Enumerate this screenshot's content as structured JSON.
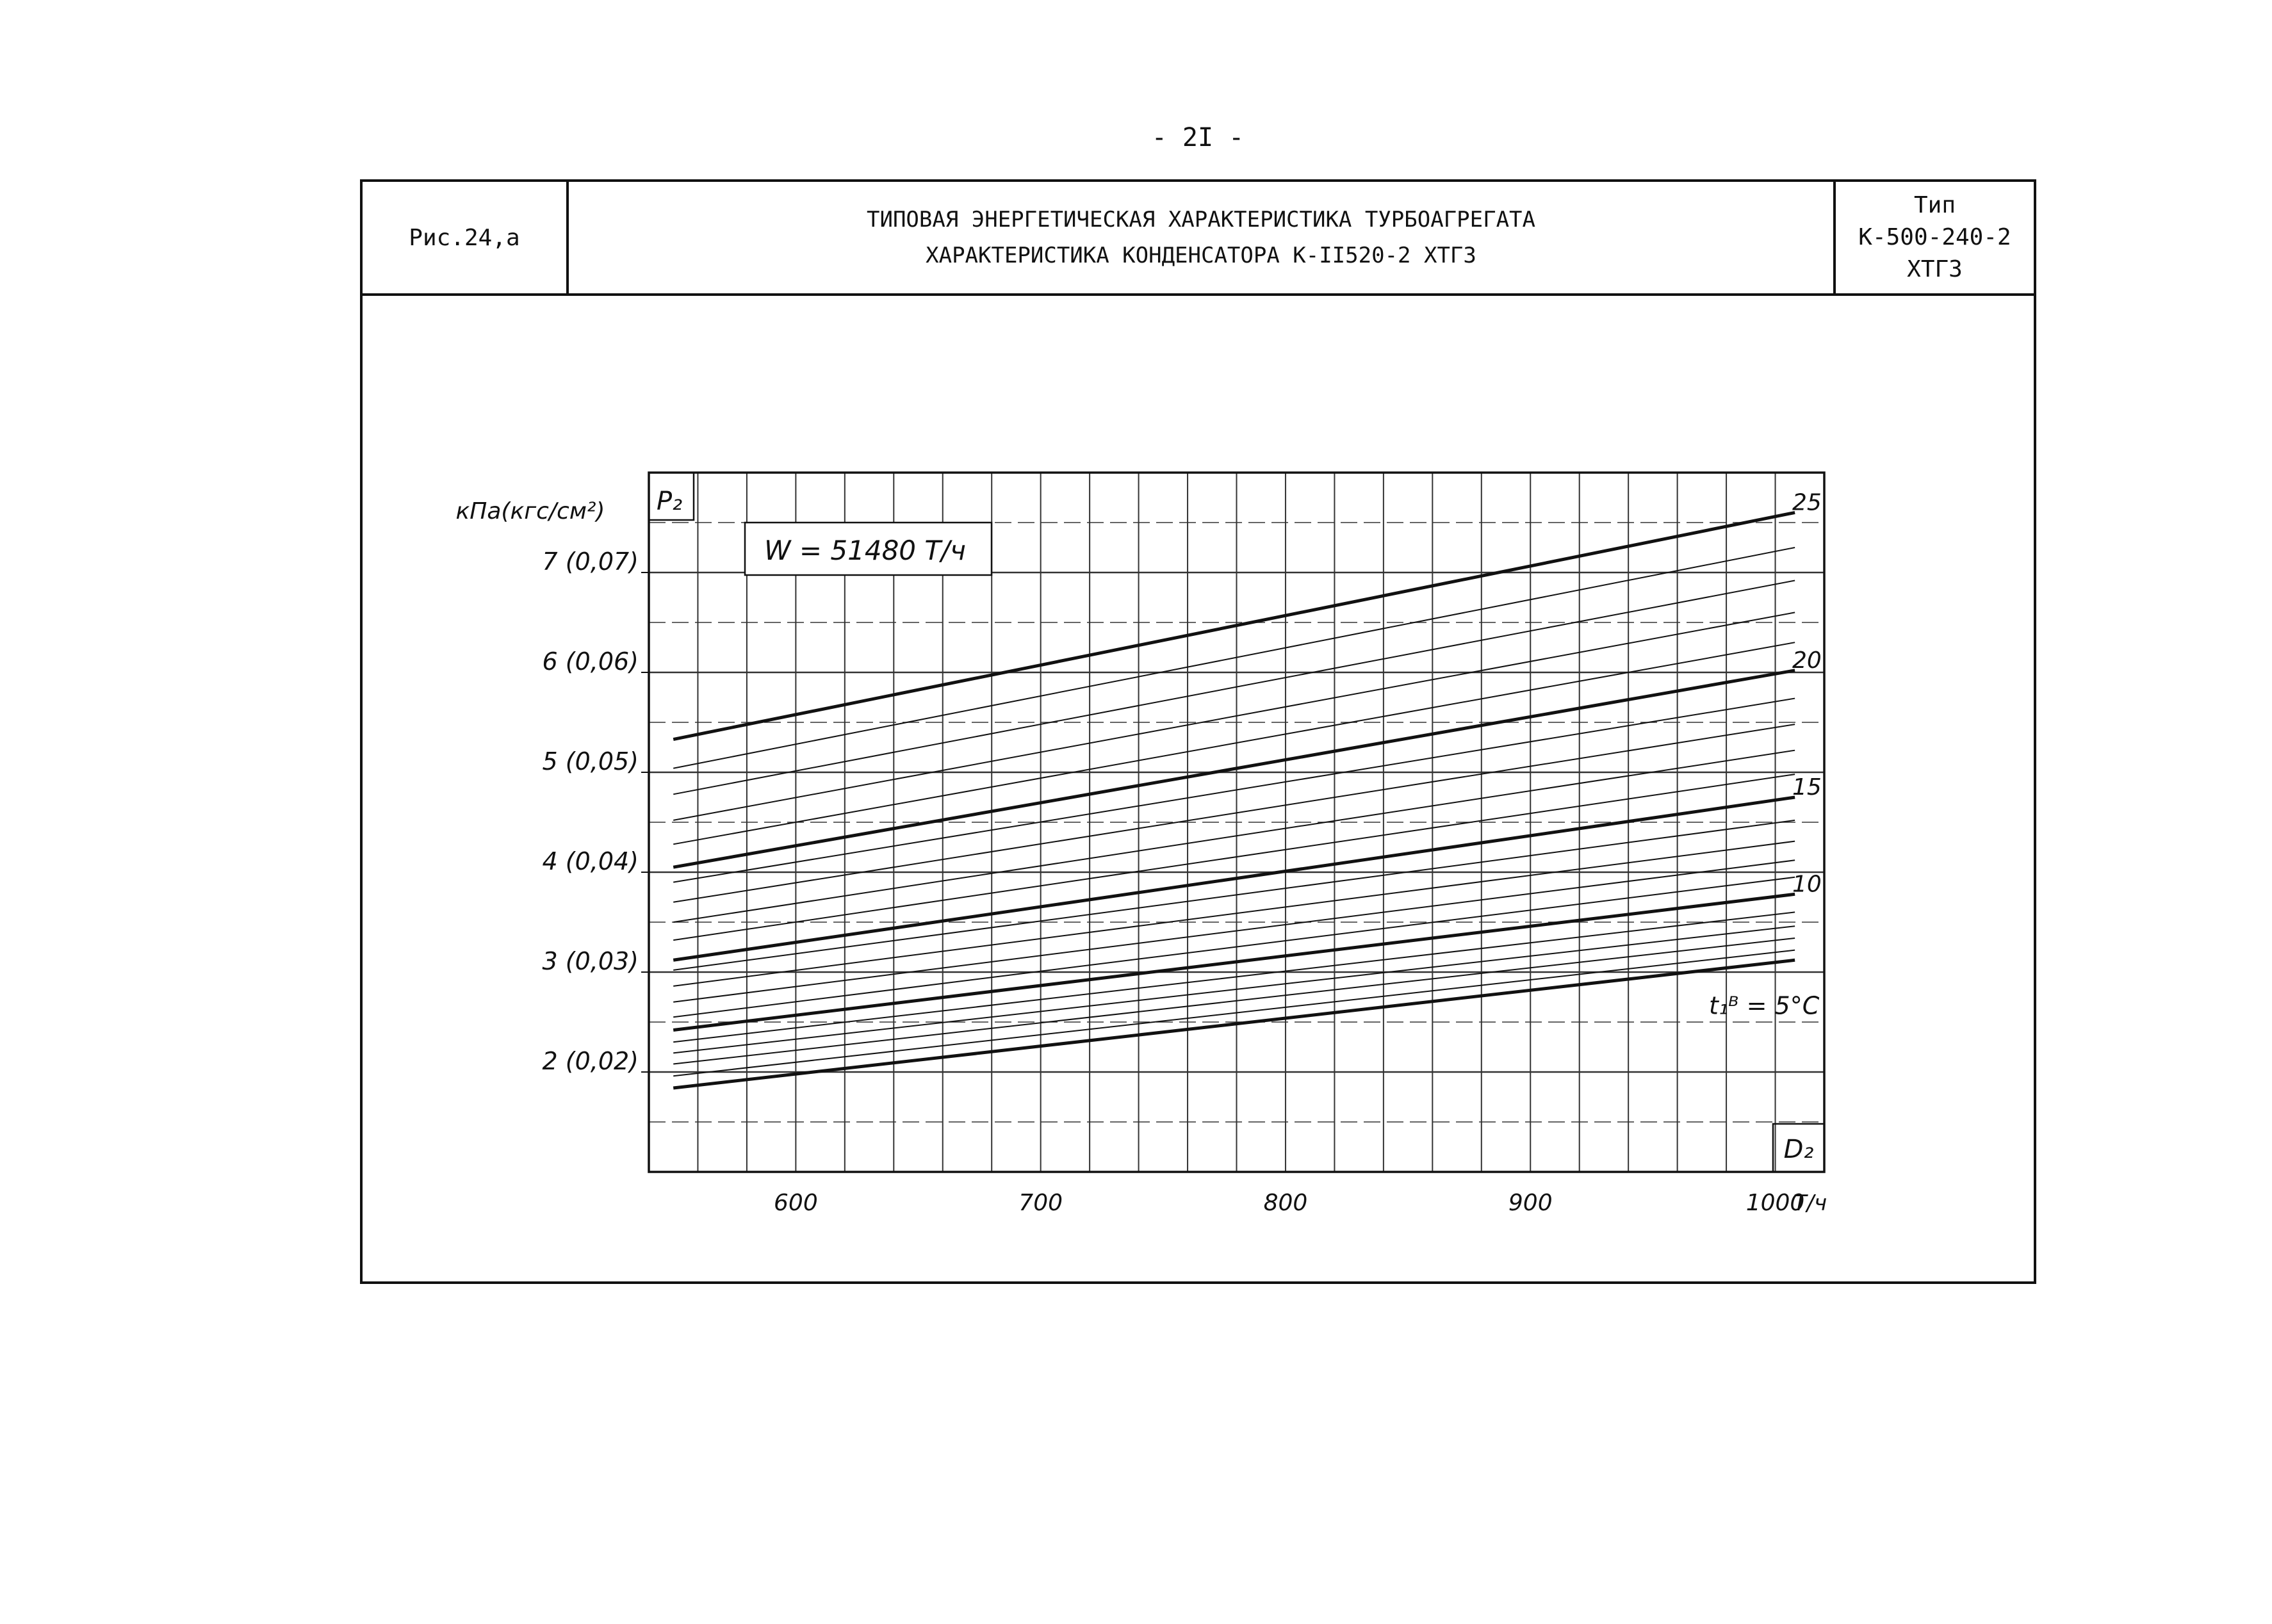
{
  "page": {
    "number": "- 2I -"
  },
  "header": {
    "figure_label": "Рис.24,а",
    "title_line1": "ТИПОВАЯ ЭНЕРГЕТИЧЕСКАЯ ХАРАКТЕРИСТИКА ТУРБОАГРЕГАТА",
    "title_line2": "ХАРАКТЕРИСТИКА КОНДЕНСАТОРА К-II520-2 ХТГЗ",
    "type_label": "Тип",
    "type_value": "К-500-240-2",
    "manufacturer": "ХТГЗ"
  },
  "chart_data": {
    "type": "line",
    "title": "",
    "ylabel": "кПа(кгс/см²)",
    "y_symbol": "P₂",
    "xlabel": "Т/ч",
    "x_symbol": "D₂",
    "annotation": "W = 51480 Т/ч",
    "temperature_label": "t₁ᴮ = 5°C",
    "xlim": [
      540,
      1020
    ],
    "ylim": [
      1,
      8
    ],
    "x_ticks": [
      {
        "value": 600,
        "label": "600"
      },
      {
        "value": 700,
        "label": "700"
      },
      {
        "value": 800,
        "label": "800"
      },
      {
        "value": 900,
        "label": "900"
      },
      {
        "value": 1000,
        "label": "1000"
      }
    ],
    "y_ticks": [
      {
        "value": 2,
        "label": "2 (0,02)"
      },
      {
        "value": 3,
        "label": "3 (0,03)"
      },
      {
        "value": 4,
        "label": "4 (0,04)"
      },
      {
        "value": 5,
        "label": "5 (0,05)"
      },
      {
        "value": 6,
        "label": "6 (0,06)"
      },
      {
        "value": 7,
        "label": "7 (0,07)"
      }
    ],
    "grid": true,
    "curve_labels": [
      {
        "t": 25,
        "label": "25"
      },
      {
        "t": 20,
        "label": "20"
      },
      {
        "t": 15,
        "label": "15"
      },
      {
        "t": 10,
        "label": "10"
      }
    ],
    "series": [
      {
        "t": 5,
        "bold": true,
        "x": [
          550,
          1008
        ],
        "y": [
          1.84,
          3.12
        ]
      },
      {
        "t": 6,
        "bold": false,
        "x": [
          550,
          1008
        ],
        "y": [
          1.96,
          3.22
        ]
      },
      {
        "t": 7,
        "bold": false,
        "x": [
          550,
          1008
        ],
        "y": [
          2.08,
          3.34
        ]
      },
      {
        "t": 8,
        "bold": false,
        "x": [
          550,
          1008
        ],
        "y": [
          2.19,
          3.46
        ]
      },
      {
        "t": 9,
        "bold": false,
        "x": [
          550,
          1008
        ],
        "y": [
          2.3,
          3.6
        ]
      },
      {
        "t": 10,
        "bold": true,
        "x": [
          550,
          1008
        ],
        "y": [
          2.42,
          3.78
        ]
      },
      {
        "t": 11,
        "bold": false,
        "x": [
          550,
          1008
        ],
        "y": [
          2.55,
          3.95
        ]
      },
      {
        "t": 12,
        "bold": false,
        "x": [
          550,
          1008
        ],
        "y": [
          2.7,
          4.12
        ]
      },
      {
        "t": 13,
        "bold": false,
        "x": [
          550,
          1008
        ],
        "y": [
          2.86,
          4.31
        ]
      },
      {
        "t": 14,
        "bold": false,
        "x": [
          550,
          1008
        ],
        "y": [
          3.02,
          4.52
        ]
      },
      {
        "t": 15,
        "bold": true,
        "x": [
          550,
          1008
        ],
        "y": [
          3.12,
          4.75
        ]
      },
      {
        "t": 16,
        "bold": false,
        "x": [
          550,
          1008
        ],
        "y": [
          3.32,
          4.98
        ]
      },
      {
        "t": 17,
        "bold": false,
        "x": [
          550,
          1008
        ],
        "y": [
          3.5,
          5.22
        ]
      },
      {
        "t": 18,
        "bold": false,
        "x": [
          550,
          1008
        ],
        "y": [
          3.7,
          5.48
        ]
      },
      {
        "t": 19,
        "bold": false,
        "x": [
          550,
          1008
        ],
        "y": [
          3.9,
          5.74
        ]
      },
      {
        "t": 20,
        "bold": true,
        "x": [
          550,
          1008
        ],
        "y": [
          4.05,
          6.02
        ]
      },
      {
        "t": 21,
        "bold": false,
        "x": [
          550,
          1008
        ],
        "y": [
          4.28,
          6.3
        ]
      },
      {
        "t": 22,
        "bold": false,
        "x": [
          550,
          1008
        ],
        "y": [
          4.52,
          6.6
        ]
      },
      {
        "t": 23,
        "bold": false,
        "x": [
          550,
          1008
        ],
        "y": [
          4.78,
          6.92
        ]
      },
      {
        "t": 24,
        "bold": false,
        "x": [
          550,
          1008
        ],
        "y": [
          5.04,
          7.25
        ]
      },
      {
        "t": 25,
        "bold": true,
        "x": [
          550,
          1008
        ],
        "y": [
          5.33,
          7.6
        ]
      }
    ]
  }
}
